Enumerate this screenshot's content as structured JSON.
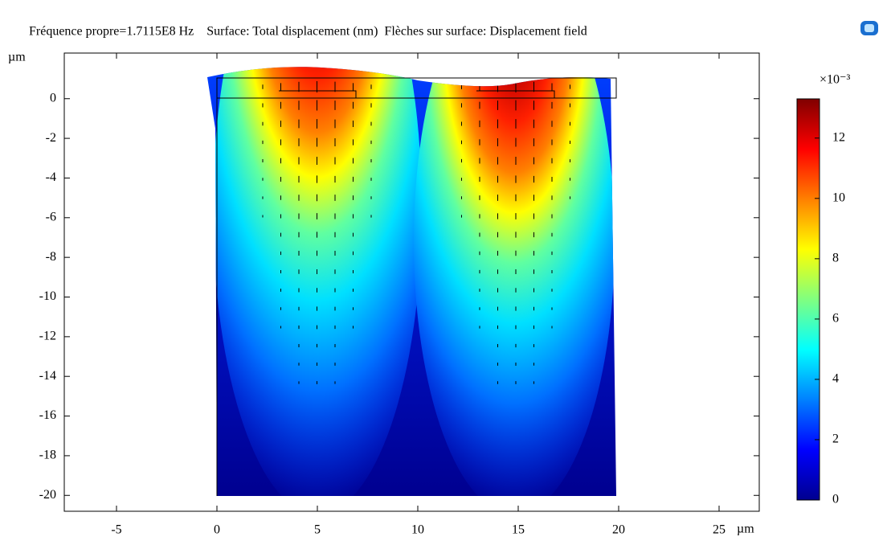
{
  "chart_data": {
    "type": "surface",
    "title": "Fréquence propre=1.7115E8 Hz    Surface: Total displacement (nm)  Flèches sur surface: Displacement field",
    "x_label": "µm",
    "y_label": "µm",
    "xlim": [
      -7.6,
      27
    ],
    "xticks": [
      -5,
      0,
      5,
      10,
      15,
      20,
      25
    ],
    "ylim": [
      -20.8,
      2.3
    ],
    "yticks": [
      0,
      -2,
      -4,
      -6,
      -8,
      -10,
      -12,
      -14,
      -16,
      -18,
      -20
    ],
    "colorbar_label": "×10⁻³",
    "clim": [
      0,
      13.3
    ],
    "cticks": [
      0,
      2,
      4,
      6,
      8,
      10,
      12
    ],
    "colormap": [
      "#00008f",
      "#0000ff",
      "#0080ff",
      "#00ffff",
      "#80ff80",
      "#ffff00",
      "#ff8000",
      "#ff0000",
      "#800000"
    ]
  }
}
